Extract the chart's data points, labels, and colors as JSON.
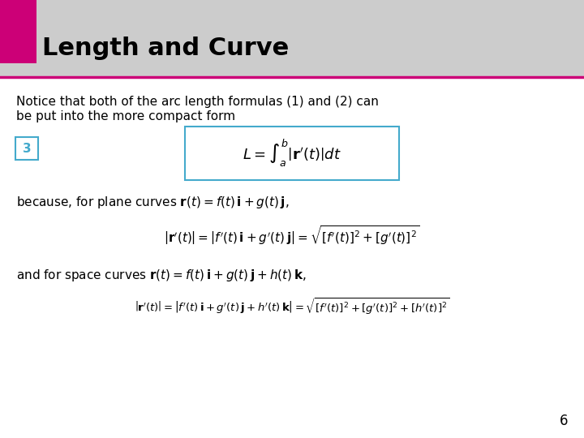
{
  "title": "Length and Curve",
  "title_bg_color": "#cccccc",
  "title_accent_color": "#cc0077",
  "title_line_color": "#cc0077",
  "title_fontsize": 22,
  "body_fontsize": 11,
  "formula_fontsize": 13,
  "label3_border_color": "#44aacc",
  "formula_box_color": "#44aacc",
  "bg_color": "#ffffff",
  "text_color": "#000000",
  "page_number": "6"
}
